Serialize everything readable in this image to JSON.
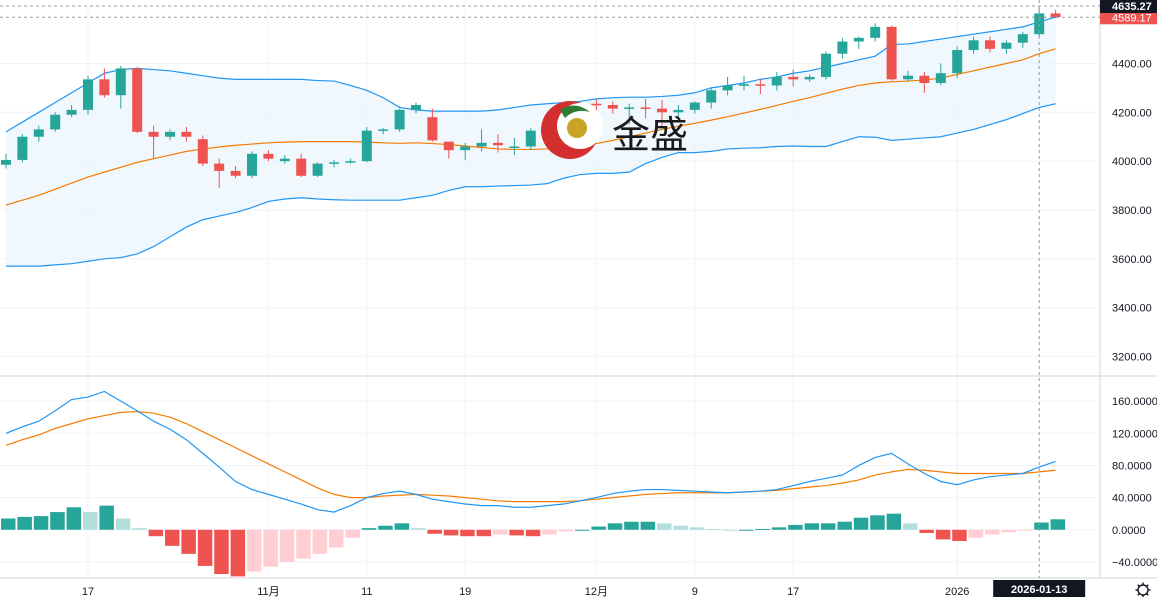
{
  "logo": {
    "text": "金盛"
  },
  "chart_data": [
    {
      "type": "candlestick",
      "panel": "price",
      "yticks": [
        "4400.00",
        "4200.00",
        "4000.00",
        "3800.00",
        "3600.00",
        "3400.00",
        "3200.00"
      ],
      "ylim": [
        3120,
        4660
      ],
      "last_price_label": "4635.27",
      "second_price_label": "4589.17",
      "colors": {
        "up": "#26a69a",
        "down": "#ef5350",
        "boll_mid": "#f57c00",
        "boll_band": "#2196f3",
        "boll_fill": "#e3f2fd"
      },
      "candles": [
        [
          3985,
          4030,
          3970,
          4005
        ],
        [
          4005,
          4110,
          3995,
          4100
        ],
        [
          4100,
          4145,
          4080,
          4130
        ],
        [
          4130,
          4200,
          4120,
          4190
        ],
        [
          4190,
          4230,
          4180,
          4210
        ],
        [
          4210,
          4350,
          4190,
          4335
        ],
        [
          4335,
          4380,
          4260,
          4270
        ],
        [
          4270,
          4390,
          4215,
          4380
        ],
        [
          4380,
          4385,
          4115,
          4120
        ],
        [
          4120,
          4145,
          4010,
          4100
        ],
        [
          4100,
          4130,
          4085,
          4120
        ],
        [
          4120,
          4140,
          4080,
          4100
        ],
        [
          4090,
          4105,
          3980,
          3990
        ],
        [
          3990,
          4010,
          3890,
          3960
        ],
        [
          3960,
          3980,
          3930,
          3940
        ],
        [
          3940,
          4040,
          3930,
          4030
        ],
        [
          4030,
          4045,
          4000,
          4010
        ],
        [
          4000,
          4025,
          3990,
          4010
        ],
        [
          4010,
          4030,
          3935,
          3940
        ],
        [
          3940,
          3995,
          3935,
          3990
        ],
        [
          3990,
          4005,
          3975,
          3995
        ],
        [
          3995,
          4010,
          3990,
          4000
        ],
        [
          4000,
          4140,
          3995,
          4125
        ],
        [
          4125,
          4135,
          4110,
          4130
        ],
        [
          4130,
          4215,
          4120,
          4210
        ],
        [
          4210,
          4240,
          4195,
          4230
        ],
        [
          4180,
          4215,
          4080,
          4085
        ],
        [
          4080,
          4065,
          4010,
          4045
        ],
        [
          4045,
          4075,
          4005,
          4060
        ],
        [
          4060,
          4130,
          4040,
          4075
        ],
        [
          4075,
          4110,
          4035,
          4065
        ],
        [
          4055,
          4095,
          4025,
          4060
        ],
        [
          4060,
          4135,
          4045,
          4125
        ],
        [
          4125,
          4155,
          4110,
          4135
        ],
        [
          4135,
          4160,
          4110,
          4155
        ],
        [
          4155,
          4245,
          4130,
          4235
        ],
        [
          4235,
          4255,
          4165,
          4230
        ],
        [
          4230,
          4245,
          4195,
          4215
        ],
        [
          4215,
          4235,
          4150,
          4220
        ],
        [
          4220,
          4255,
          4175,
          4215
        ],
        [
          4215,
          4250,
          4140,
          4200
        ],
        [
          4200,
          4230,
          4170,
          4210
        ],
        [
          4210,
          4245,
          4195,
          4240
        ],
        [
          4240,
          4300,
          4215,
          4290
        ],
        [
          4290,
          4345,
          4270,
          4310
        ],
        [
          4310,
          4350,
          4290,
          4315
        ],
        [
          4315,
          4335,
          4275,
          4310
        ],
        [
          4310,
          4365,
          4290,
          4345
        ],
        [
          4345,
          4375,
          4305,
          4335
        ],
        [
          4335,
          4355,
          4325,
          4345
        ],
        [
          4345,
          4450,
          4335,
          4440
        ],
        [
          4440,
          4505,
          4420,
          4490
        ],
        [
          4490,
          4510,
          4460,
          4505
        ],
        [
          4505,
          4565,
          4490,
          4550
        ],
        [
          4550,
          4555,
          4330,
          4335
        ],
        [
          4335,
          4370,
          4325,
          4350
        ],
        [
          4350,
          4365,
          4280,
          4320
        ],
        [
          4320,
          4400,
          4310,
          4360
        ],
        [
          4360,
          4470,
          4340,
          4455
        ],
        [
          4455,
          4510,
          4440,
          4495
        ],
        [
          4495,
          4510,
          4445,
          4460
        ],
        [
          4460,
          4495,
          4440,
          4485
        ],
        [
          4485,
          4530,
          4465,
          4520
        ],
        [
          4520,
          4625,
          4510,
          4605
        ],
        [
          4605,
          4620,
          4585,
          4590
        ]
      ],
      "boll_mid": [
        3820,
        3840,
        3860,
        3885,
        3910,
        3935,
        3955,
        3975,
        3995,
        4010,
        4025,
        4040,
        4050,
        4058,
        4065,
        4070,
        4075,
        4078,
        4080,
        4080,
        4080,
        4080,
        4078,
        4075,
        4073,
        4075,
        4072,
        4068,
        4062,
        4056,
        4050,
        4048,
        4048,
        4050,
        4055,
        4062,
        4072,
        4085,
        4100,
        4115,
        4130,
        4143,
        4155,
        4168,
        4182,
        4197,
        4212,
        4228,
        4245,
        4260,
        4278,
        4295,
        4310,
        4320,
        4325,
        4328,
        4332,
        4340,
        4355,
        4370,
        4385,
        4400,
        4415,
        4440,
        4460
      ],
      "boll_upper": [
        4120,
        4160,
        4200,
        4240,
        4280,
        4320,
        4360,
        4375,
        4380,
        4375,
        4370,
        4360,
        4350,
        4340,
        4335,
        4335,
        4335,
        4335,
        4335,
        4330,
        4328,
        4310,
        4290,
        4260,
        4220,
        4210,
        4205,
        4205,
        4205,
        4205,
        4210,
        4220,
        4230,
        4235,
        4240,
        4245,
        4255,
        4260,
        4262,
        4262,
        4265,
        4270,
        4280,
        4300,
        4310,
        4320,
        4335,
        4345,
        4360,
        4370,
        4385,
        4400,
        4415,
        4430,
        4478,
        4480,
        4490,
        4500,
        4510,
        4520,
        4530,
        4540,
        4550,
        4570,
        4590
      ],
      "boll_lower": [
        3570,
        3570,
        3570,
        3575,
        3580,
        3590,
        3600,
        3605,
        3620,
        3650,
        3690,
        3730,
        3760,
        3775,
        3790,
        3810,
        3835,
        3845,
        3850,
        3845,
        3842,
        3840,
        3840,
        3840,
        3840,
        3850,
        3860,
        3880,
        3895,
        3895,
        3898,
        3900,
        3902,
        3908,
        3930,
        3945,
        3950,
        3950,
        3955,
        3990,
        4015,
        4035,
        4035,
        4040,
        4050,
        4053,
        4055,
        4060,
        4062,
        4060,
        4060,
        4080,
        4100,
        4098,
        4085,
        4090,
        4095,
        4100,
        4115,
        4130,
        4150,
        4170,
        4195,
        4220,
        4235
      ]
    },
    {
      "type": "macd",
      "panel": "indicator",
      "yticks": [
        "160.0000",
        "120.0000",
        "80.0000",
        "40.0000",
        "0.0000",
        "−40.0000"
      ],
      "ylim": [
        -60,
        190
      ],
      "colors": {
        "dif": "#2196f3",
        "dea": "#f57c00",
        "hist_up_strong": "#26a69a",
        "hist_up_weak": "#b2dfdb",
        "hist_down_strong": "#ef5350",
        "hist_down_weak": "#ffcdd2"
      },
      "dif": [
        120,
        128,
        135,
        148,
        162,
        165,
        172,
        160,
        148,
        135,
        125,
        112,
        95,
        78,
        60,
        50,
        44,
        38,
        32,
        25,
        22,
        30,
        40,
        45,
        48,
        44,
        38,
        35,
        32,
        30,
        30,
        28,
        28,
        30,
        32,
        36,
        40,
        45,
        48,
        50,
        50,
        49,
        48,
        47,
        46,
        47,
        48,
        50,
        55,
        60,
        64,
        68,
        80,
        90,
        95,
        82,
        70,
        60,
        56,
        62,
        66,
        68,
        70,
        78,
        85
      ],
      "dea": [
        105,
        112,
        118,
        126,
        132,
        138,
        142,
        146,
        147,
        145,
        140,
        132,
        122,
        112,
        102,
        92,
        82,
        72,
        62,
        52,
        44,
        40,
        40,
        42,
        43,
        44,
        43,
        42,
        40,
        38,
        36,
        35,
        35,
        35,
        35,
        36,
        38,
        40,
        42,
        44,
        45,
        46,
        46,
        46,
        46,
        47,
        48,
        49,
        51,
        53,
        55,
        58,
        62,
        68,
        72,
        75,
        74,
        72,
        70,
        70,
        70,
        70,
        70,
        72,
        74
      ],
      "hist": [
        14,
        16,
        17,
        22,
        28,
        22,
        30,
        14,
        2,
        -8,
        -20,
        -30,
        -45,
        -55,
        -58,
        -52,
        -46,
        -40,
        -36,
        -30,
        -22,
        -10,
        2,
        5,
        8,
        2,
        -5,
        -7,
        -8,
        -8,
        -6,
        -7,
        -8,
        -6,
        -2,
        0,
        4,
        8,
        10,
        10,
        8,
        5,
        3,
        1,
        0,
        0,
        1,
        3,
        6,
        8,
        8,
        10,
        15,
        18,
        20,
        8,
        -4,
        -12,
        -14,
        -10,
        -6,
        -3,
        -1,
        9,
        13
      ]
    }
  ],
  "x_axis_labels": [
    "17",
    "11月",
    "11",
    "19",
    "12月",
    "9",
    "17",
    "2026"
  ],
  "crosshair_date": "2026-01-13"
}
